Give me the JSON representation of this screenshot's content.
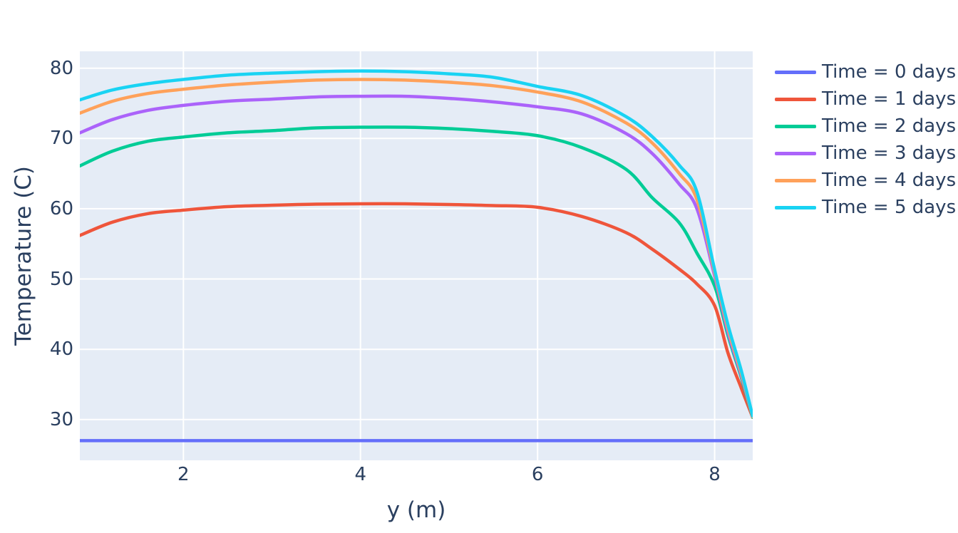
{
  "chart_data": {
    "type": "line",
    "title": "",
    "xlabel": "y (m)",
    "ylabel": "Temperature (C)",
    "xlim": [
      0.83,
      8.43
    ],
    "ylim": [
      24.2,
      82.4
    ],
    "xticks": [
      2,
      4,
      6,
      8
    ],
    "yticks": [
      30,
      40,
      50,
      60,
      70,
      80
    ],
    "grid": true,
    "plot_bgcolor": "#E5ECF6",
    "gridcolor": "#FFFFFF",
    "textcolor": "#2A3F5F",
    "line_width": 4.5,
    "legend_position": "outside-top-right",
    "x": [
      0.83,
      1.2,
      1.6,
      2.0,
      2.5,
      3.0,
      3.5,
      4.0,
      4.5,
      5.0,
      5.5,
      6.0,
      6.5,
      7.0,
      7.3,
      7.6,
      7.8,
      8.0,
      8.15,
      8.3,
      8.43
    ],
    "series": [
      {
        "name": "Time = 0 days",
        "color": "#636EFA",
        "values": [
          27,
          27,
          27,
          27,
          27,
          27,
          27,
          27,
          27,
          27,
          27,
          27,
          27,
          27,
          27,
          27,
          27,
          27,
          27,
          27,
          27
        ]
      },
      {
        "name": "Time = 1 days",
        "color": "#EF553B",
        "values": [
          56.2,
          58.1,
          59.3,
          59.8,
          60.3,
          60.5,
          60.65,
          60.7,
          60.7,
          60.6,
          60.45,
          60.2,
          58.9,
          56.6,
          54.2,
          51.4,
          49.3,
          46.2,
          39.5,
          34.5,
          30.3
        ]
      },
      {
        "name": "Time = 2 days",
        "color": "#00CC96",
        "values": [
          66.1,
          68.2,
          69.6,
          70.2,
          70.8,
          71.1,
          71.5,
          71.6,
          71.6,
          71.4,
          71.0,
          70.4,
          68.7,
          65.6,
          61.5,
          58.0,
          53.7,
          49.0,
          42.0,
          36.0,
          30.3
        ]
      },
      {
        "name": "Time = 3 days",
        "color": "#AB63FA",
        "values": [
          70.8,
          72.7,
          74.0,
          74.7,
          75.3,
          75.6,
          75.9,
          76.0,
          76.0,
          75.7,
          75.2,
          74.5,
          73.5,
          70.7,
          67.8,
          63.5,
          60.0,
          50.4,
          42.5,
          36.3,
          30.4
        ]
      },
      {
        "name": "Time = 4 days",
        "color": "#FFA15A",
        "values": [
          73.6,
          75.3,
          76.4,
          77.0,
          77.6,
          78.0,
          78.3,
          78.4,
          78.3,
          78.0,
          77.5,
          76.6,
          75.2,
          72.2,
          69.3,
          65.0,
          61.3,
          50.9,
          43.0,
          36.6,
          30.4
        ]
      },
      {
        "name": "Time = 5 days",
        "color": "#19D3F3",
        "values": [
          75.5,
          76.9,
          77.8,
          78.4,
          79.0,
          79.3,
          79.5,
          79.6,
          79.5,
          79.2,
          78.7,
          77.4,
          76.1,
          73.1,
          70.2,
          66.2,
          62.4,
          51.3,
          43.5,
          37.0,
          30.5
        ]
      }
    ]
  }
}
